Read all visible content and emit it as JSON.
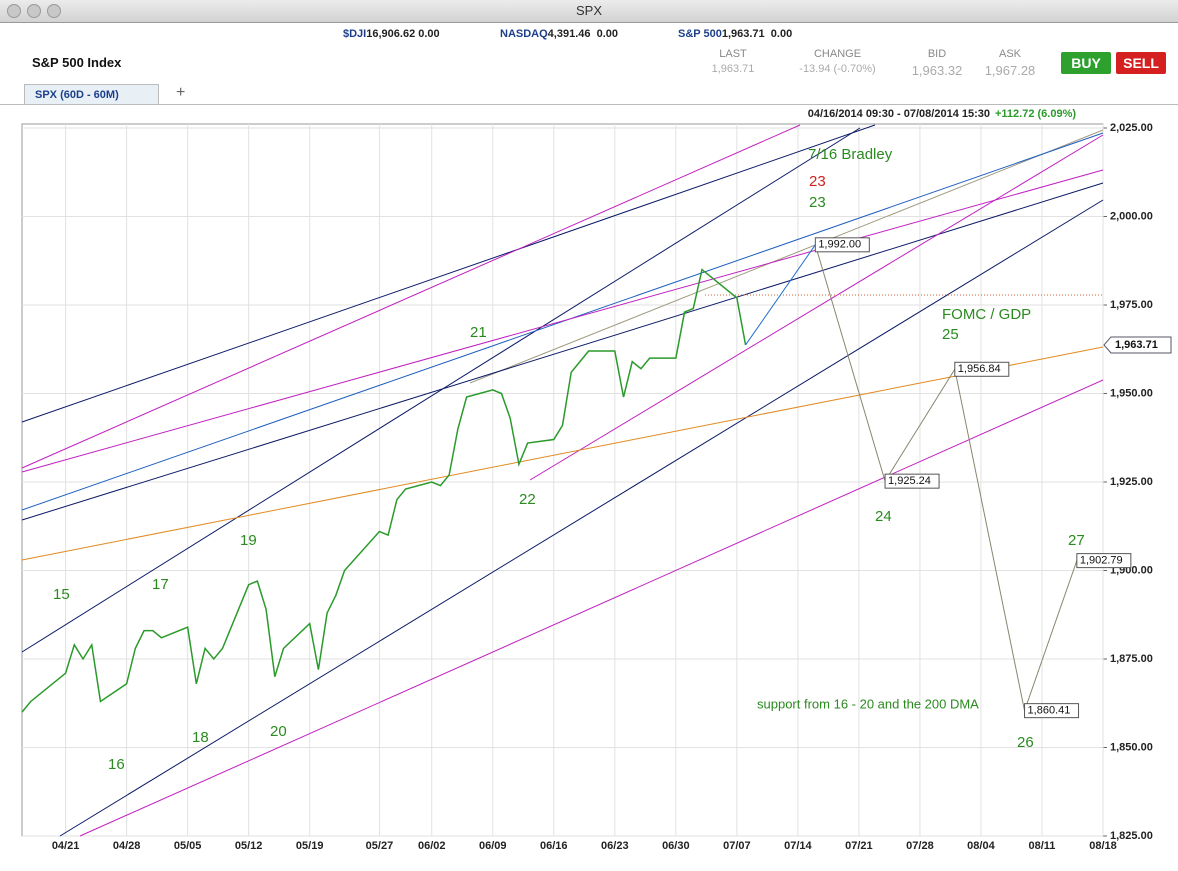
{
  "window": {
    "title": "SPX"
  },
  "quotes": [
    {
      "symbol": "$DJI",
      "price": "16,906.62",
      "change": "0.00"
    },
    {
      "symbol": "NASDAQ",
      "price": "4,391.46",
      "change": "0.00"
    },
    {
      "symbol": "S&P 500",
      "price": "1,963.71",
      "change": "0.00"
    }
  ],
  "header": {
    "name": "S&P 500 Index",
    "last_label": "LAST",
    "last": "1,963.71",
    "change_label": "CHANGE",
    "change": "-13.94 (-0.70%)",
    "bid_label": "BID",
    "bid": "1,963.32",
    "ask_label": "ASK",
    "ask": "1,967.28",
    "buy": "BUY",
    "sell": "SELL",
    "tab": "SPX (60D - 60M)",
    "add_tab": "+",
    "range": "04/16/2014 09:30 - 07/08/2014 15:30",
    "range_change": "+112.72 (6.09%)"
  },
  "annotations": [
    "15",
    "16",
    "17",
    "18",
    "19",
    "20",
    "21",
    "22",
    "7/16 Bradley",
    "23",
    "23",
    "FOMC / GDP",
    "25",
    "24",
    "27",
    "support from 16 - 20 and the 200 DMA",
    "26"
  ],
  "chart_data": {
    "type": "line",
    "x": [
      "04/16",
      "04/17",
      "04/21",
      "04/22",
      "04/23",
      "04/24",
      "04/25",
      "04/28",
      "04/29",
      "04/30",
      "05/01",
      "05/02",
      "05/05",
      "05/06",
      "05/07",
      "05/08",
      "05/09",
      "05/12",
      "05/13",
      "05/14",
      "05/15",
      "05/16",
      "05/19",
      "05/20",
      "05/21",
      "05/22",
      "05/23",
      "05/27",
      "05/28",
      "05/29",
      "05/30",
      "06/02",
      "06/03",
      "06/04",
      "06/05",
      "06/06",
      "06/09",
      "06/10",
      "06/11",
      "06/12",
      "06/13",
      "06/16",
      "06/17",
      "06/18",
      "06/19",
      "06/20",
      "06/23",
      "06/24",
      "06/25",
      "06/26",
      "06/27",
      "06/30",
      "07/01",
      "07/02",
      "07/03",
      "07/07",
      "07/08"
    ],
    "series": [
      {
        "name": "SPX",
        "color": "#2a9a2a",
        "values": [
          1860,
          1863,
          1871,
          1879,
          1875,
          1879,
          1863,
          1868,
          1878,
          1883,
          1883,
          1881,
          1884,
          1868,
          1878,
          1875,
          1878,
          1896,
          1897,
          1889,
          1870,
          1878,
          1885,
          1872,
          1888,
          1893,
          1900,
          1911,
          1910,
          1920,
          1923,
          1925,
          1924,
          1927,
          1940,
          1949,
          1951,
          1950,
          1943,
          1930,
          1936,
          1937,
          1941,
          1956,
          1959,
          1962,
          1962,
          1949,
          1959,
          1957,
          1960,
          1960,
          1973,
          1974,
          1985,
          1977,
          1963.71
        ]
      }
    ],
    "projection": {
      "x": [
        "07/08",
        "07/16",
        "07/24",
        "08/01",
        "08/09",
        "08/15"
      ],
      "values": [
        1963.71,
        1992,
        1925.24,
        1956.84,
        1860.41,
        1902.79
      ],
      "value_labels": [
        null,
        "1,992.00",
        "1,925.24",
        "1,956.84",
        "1,860.41",
        "1,902.79"
      ]
    },
    "last_label": "1,963.71",
    "xlim": [
      "04/16",
      "08/18"
    ],
    "xticks": [
      "04/21",
      "04/28",
      "05/05",
      "05/12",
      "05/19",
      "05/27",
      "06/02",
      "06/09",
      "06/16",
      "06/23",
      "06/30",
      "07/07",
      "07/14",
      "07/21",
      "07/28",
      "08/04",
      "08/11",
      "08/18"
    ],
    "ylim": [
      1825,
      2025
    ],
    "yticks": [
      {
        "value": 1825,
        "label": "1,825.00"
      },
      {
        "value": 1850,
        "label": "1,850.00"
      },
      {
        "value": 1875,
        "label": "1,875.00"
      },
      {
        "value": 1900,
        "label": "1,900.00"
      },
      {
        "value": 1925,
        "label": "1,925.00"
      },
      {
        "value": 1950,
        "label": "1,950.00"
      },
      {
        "value": 1975,
        "label": "1,975.00"
      },
      {
        "value": 2000,
        "label": "2,000.00"
      },
      {
        "value": 2025,
        "label": "2,025.00"
      }
    ],
    "grid": true
  }
}
